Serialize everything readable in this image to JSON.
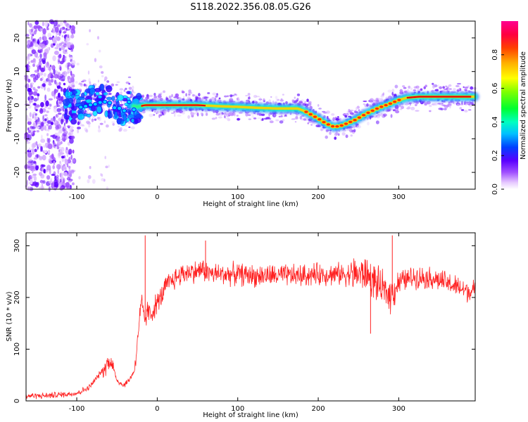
{
  "title": "S118.2022.356.08.05.G26",
  "chart_data": [
    {
      "type": "heatmap",
      "xlabel": "Height of straight line (km)",
      "ylabel": "Frequency (Hz)",
      "xlim": [
        -163,
        395
      ],
      "ylim": [
        -25,
        25
      ],
      "xticks": [
        -100,
        0,
        100,
        200,
        300
      ],
      "yticks": [
        -20,
        -10,
        0,
        10,
        20
      ],
      "colorbar": {
        "label": "Normalized spectral amplitude",
        "range": [
          0,
          1
        ],
        "ticks": [
          0.0,
          0.2,
          0.4,
          0.6,
          0.8
        ],
        "colormap": [
          "#ffffff",
          "#c27bff",
          "#8a2be2",
          "#3b00ff",
          "#0080ff",
          "#00e5ff",
          "#00ff80",
          "#33ff00",
          "#c8ff00",
          "#ffd500",
          "#ff8000",
          "#ff0000",
          "#ff00a0"
        ]
      },
      "ridge": {
        "x": [
          -100,
          -85,
          -70,
          -55,
          -45,
          -35,
          -25,
          -15,
          0,
          25,
          50,
          75,
          100,
          125,
          150,
          175,
          185,
          200,
          210,
          220,
          230,
          245,
          260,
          275,
          290,
          300,
          310,
          325,
          350,
          375,
          395
        ],
        "y": [
          -0.5,
          1.0,
          2.0,
          0.5,
          -2.0,
          0.0,
          -0.5,
          0.0,
          0.0,
          0.0,
          0.0,
          -0.3,
          -0.5,
          -0.8,
          -1.0,
          -1.0,
          -2.0,
          -4.0,
          -5.5,
          -6.5,
          -6.0,
          -4.5,
          -2.5,
          -0.8,
          0.5,
          1.5,
          2.2,
          2.5,
          2.5,
          2.5,
          2.5
        ]
      }
    },
    {
      "type": "line",
      "xlabel": "Height of straight line (km)",
      "ylabel": "SNR (10 * v/v)",
      "xlim": [
        -163,
        395
      ],
      "ylim": [
        0,
        325
      ],
      "xticks": [
        -100,
        0,
        100,
        200,
        300
      ],
      "yticks": [
        0,
        100,
        200,
        300
      ],
      "series": [
        {
          "color": "#ff0000",
          "x": [
            -163,
            -140,
            -120,
            -100,
            -85,
            -75,
            -65,
            -58,
            -50,
            -42,
            -35,
            -28,
            -25,
            -22,
            -19,
            -16,
            -12,
            -8,
            -4,
            0,
            5,
            10,
            20,
            30,
            40,
            50,
            55,
            60,
            70,
            80,
            100,
            120,
            140,
            160,
            180,
            200,
            220,
            240,
            260,
            270,
            280,
            290,
            300,
            320,
            340,
            360,
            380,
            395
          ],
          "y": [
            10,
            10,
            12,
            15,
            25,
            45,
            65,
            80,
            40,
            30,
            40,
            60,
            110,
            160,
            190,
            150,
            175,
            165,
            180,
            190,
            200,
            220,
            235,
            245,
            250,
            250,
            255,
            250,
            245,
            245,
            245,
            242,
            242,
            242,
            242,
            245,
            245,
            245,
            245,
            230,
            215,
            205,
            230,
            240,
            238,
            228,
            215,
            210
          ]
        }
      ],
      "spikes": [
        {
          "x": -15,
          "y": 320
        },
        {
          "x": 60,
          "y": 310
        },
        {
          "x": 292,
          "y": 320
        },
        {
          "x": 265,
          "y": 130
        }
      ]
    }
  ]
}
